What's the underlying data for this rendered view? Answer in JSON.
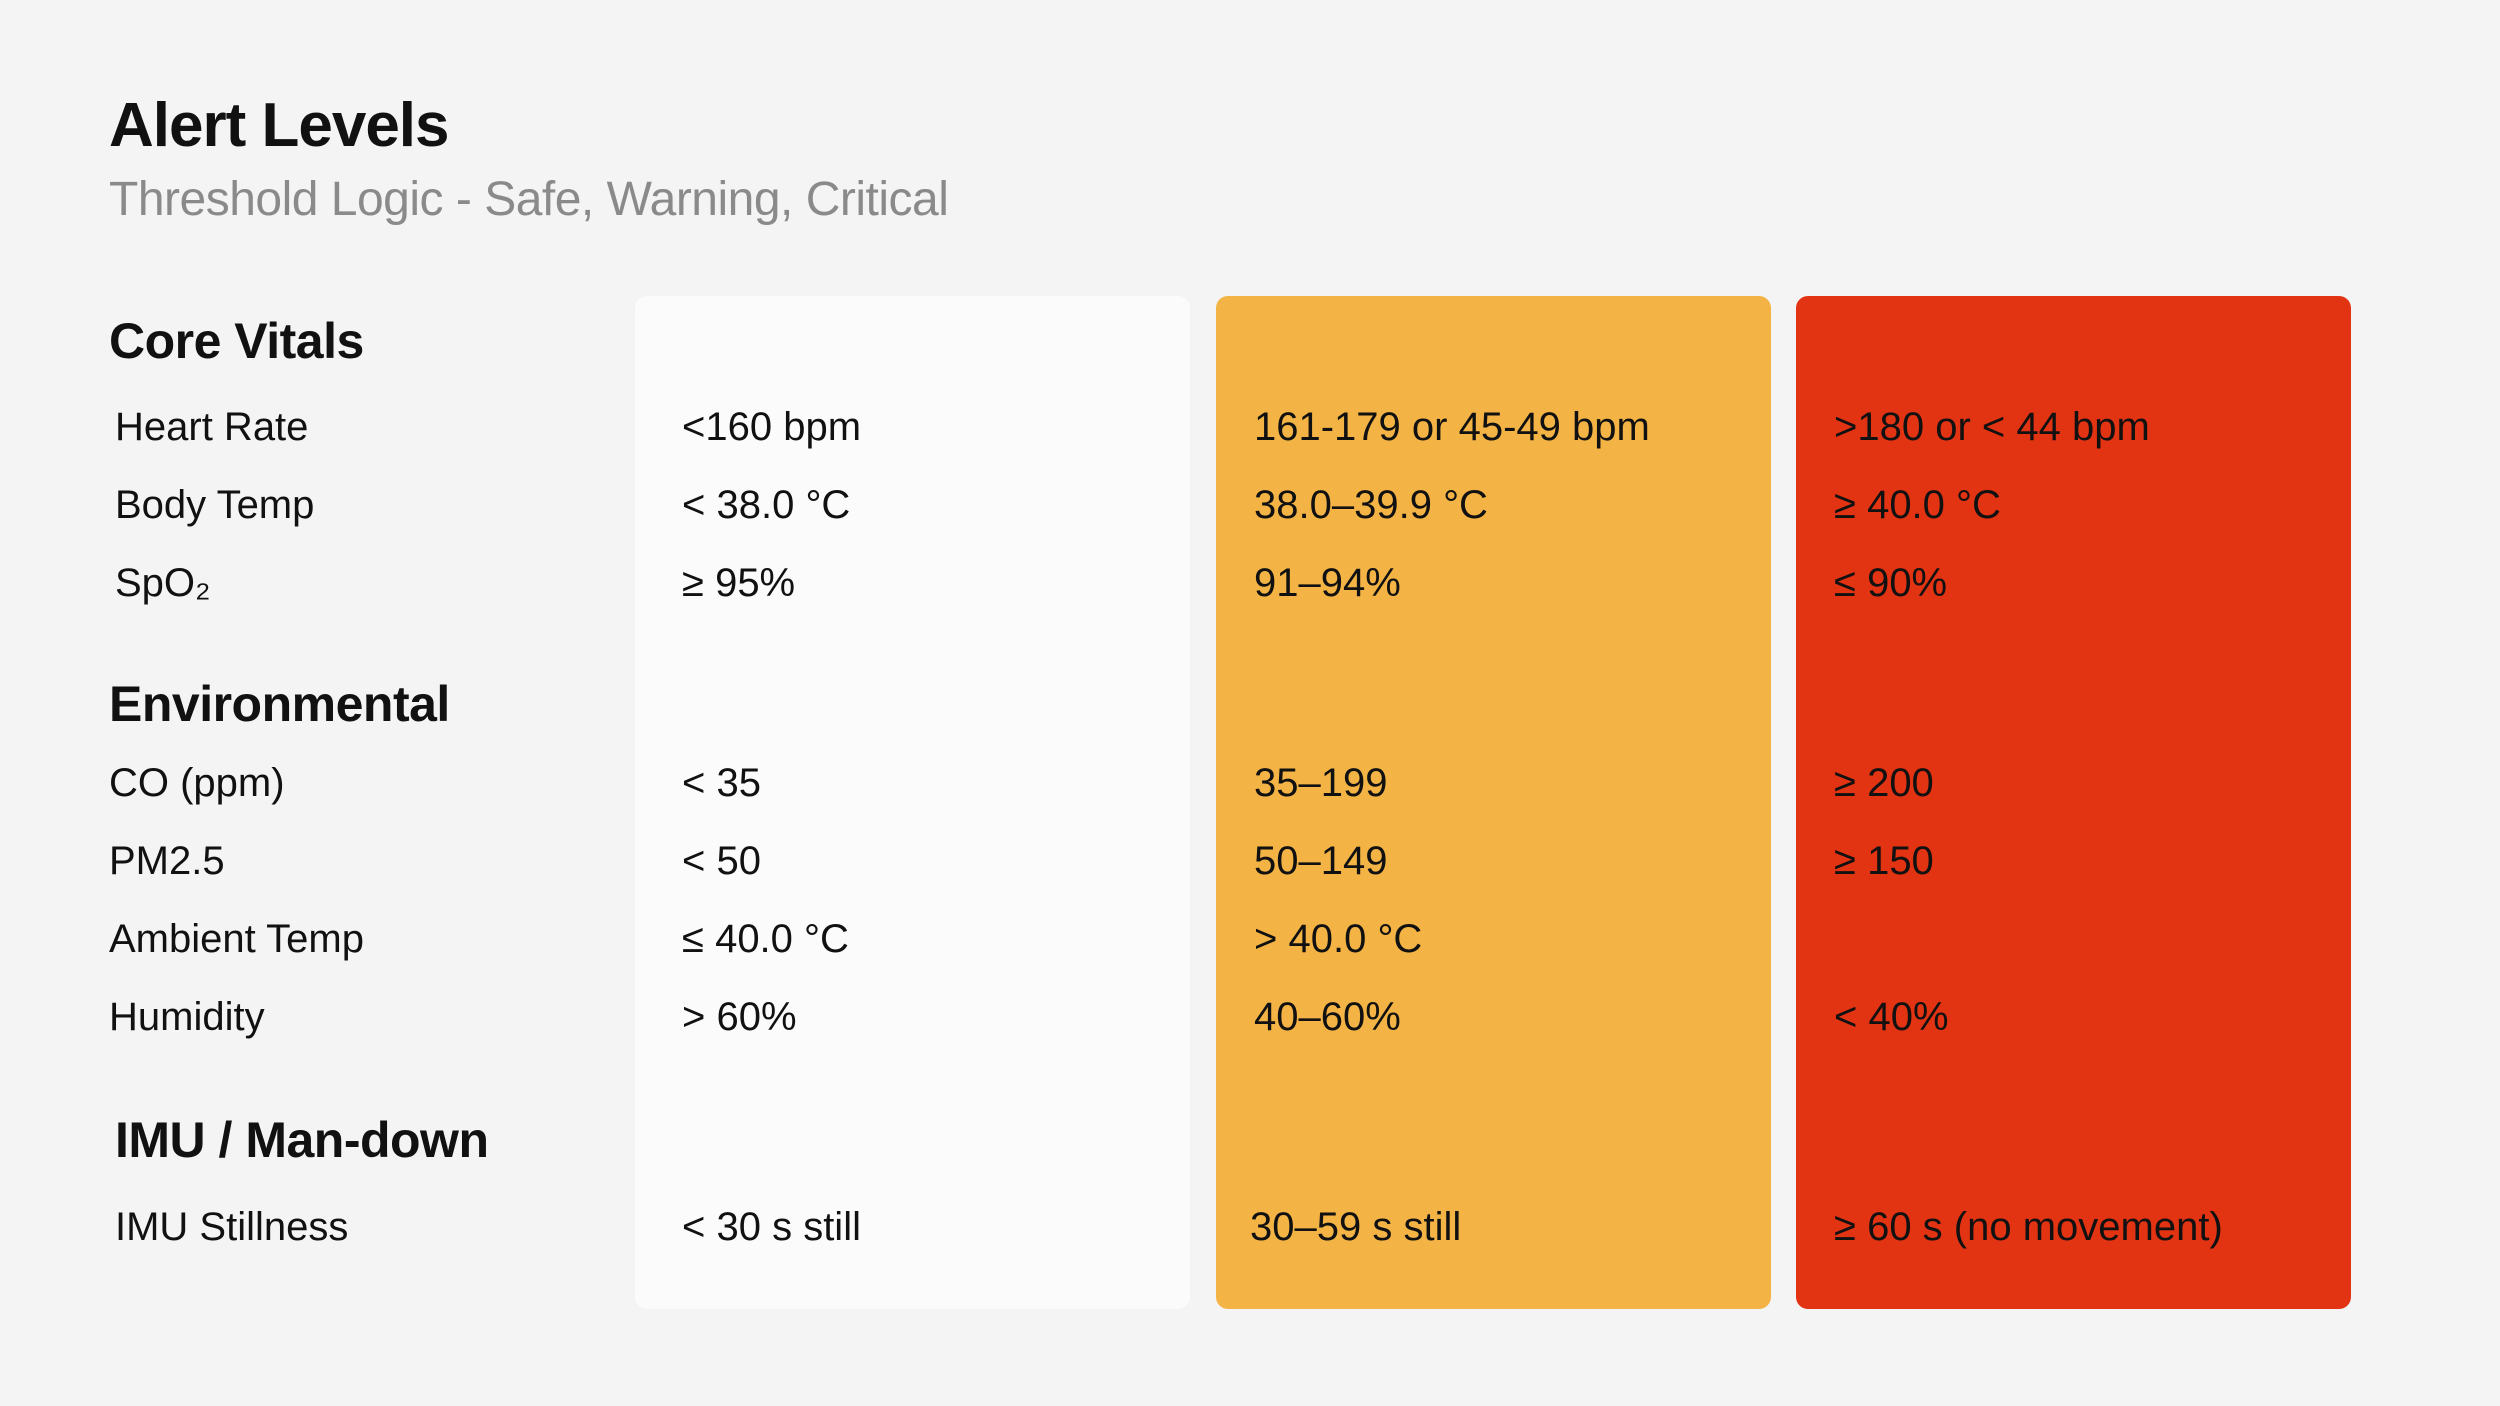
{
  "header": {
    "title": "Alert Levels",
    "subtitle": "Threshold Logic - Safe, Warning, Critical"
  },
  "levels": {
    "safe_color": "#fbfbfb",
    "warning_color": "#f4b445",
    "critical_color": "#e23313"
  },
  "sections": {
    "core_vitals": {
      "title": "Core Vitals",
      "rows": [
        {
          "label": "Heart Rate",
          "safe": "<160 bpm",
          "warning": "161-179 or 45-49 bpm",
          "critical": ">180 or < 44 bpm"
        },
        {
          "label": "Body Temp",
          "safe": "< 38.0 °C",
          "warning": "38.0–39.9 °C",
          "critical": "≥ 40.0 °C"
        },
        {
          "label": "SpO₂",
          "safe": "≥ 95%",
          "warning": "91–94%",
          "critical": "≤ 90%"
        }
      ]
    },
    "environmental": {
      "title": "Environmental",
      "rows": [
        {
          "label": "CO (ppm)",
          "safe": "< 35",
          "warning": "35–199",
          "critical": "≥ 200"
        },
        {
          "label": "PM2.5",
          "safe": "< 50",
          "warning": "50–149",
          "critical": "≥ 150"
        },
        {
          "label": "Ambient Temp",
          "safe": "≤ 40.0 °C",
          "warning": "> 40.0 °C",
          "critical": ""
        },
        {
          "label": "Humidity",
          "safe": "> 60%",
          "warning": "40–60%",
          "critical": "< 40%"
        }
      ]
    },
    "imu": {
      "title": "IMU / Man-down",
      "rows": [
        {
          "label": "IMU Stillness",
          "safe": "< 30 s still",
          "warning": "30–59 s still",
          "critical": "≥ 60 s (no movement)"
        }
      ]
    }
  }
}
